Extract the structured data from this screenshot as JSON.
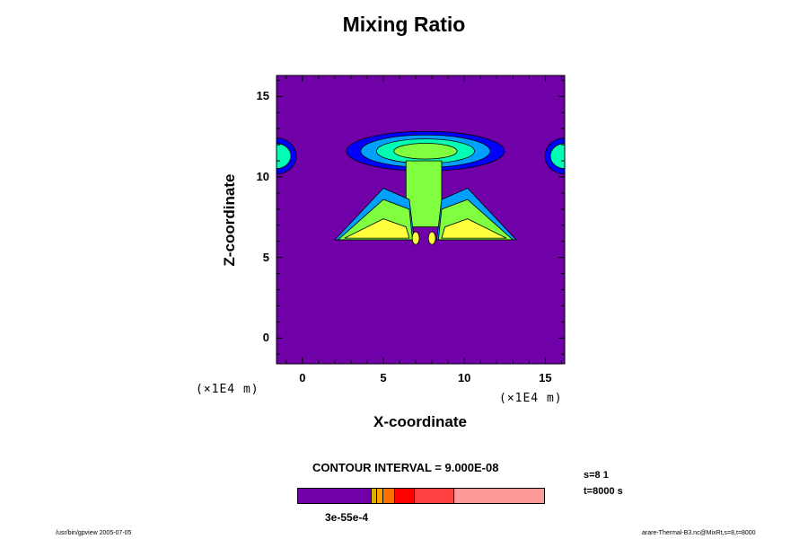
{
  "chart_data": {
    "type": "heatmap",
    "title": "Mixing Ratio",
    "xlabel": "X-coordinate",
    "ylabel": "Z-coordinate",
    "x_unit": "(×1E4 m)",
    "y_unit": "(×1E4 m)",
    "xlim": [
      -1.6,
      16.2
    ],
    "ylim": [
      -1.6,
      16.3
    ],
    "x_ticks": [
      0,
      5,
      10,
      15
    ],
    "y_ticks": [
      0,
      5,
      10,
      15
    ],
    "background_color": "#7000a8",
    "contour_interval": "CONTOUR INTERVAL = 9.000E-08",
    "colorbar_label": "3e-55e-4",
    "colorbar_colors": [
      "#7000a8",
      "#d2b400",
      "#ffa000",
      "#ff7000",
      "#ff0000",
      "#ff4040",
      "#ff9a9a"
    ],
    "info": {
      "s": "s=8 1",
      "t": "t=8000 s"
    }
  },
  "footer": {
    "left": "/usr/bin/gpview 2005-07-05",
    "right": "arare-Thermal-B3.nc@MixRt,s=8,t=8000"
  }
}
